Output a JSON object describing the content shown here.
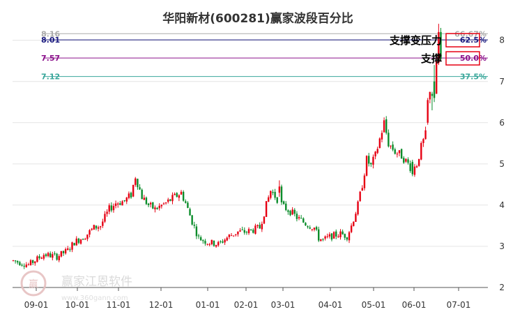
{
  "chart_data": {
    "type": "candlestick",
    "title": "华阳新材(600281)赢家波段百分比",
    "ylim": [
      2,
      8.3
    ],
    "y_ticks": [
      "2",
      "3",
      "4",
      "5",
      "6",
      "7",
      "8"
    ],
    "x_ticks": [
      "09-01",
      "10-01",
      "11-01",
      "12-01",
      "01-01",
      "02-01",
      "03-01",
      "04-01",
      "05-01",
      "06-01",
      "07-01"
    ],
    "grid": "horizontal",
    "colors": {
      "up": "#e60012",
      "down": "#0a8c2a"
    },
    "fib_levels": [
      {
        "price": 8.16,
        "price_label": "8.16",
        "pct_label": "66.67%",
        "color": "#aaaaaa"
      },
      {
        "price": 8.01,
        "price_label": "8.01",
        "pct_label": "62.5%",
        "color": "#1a1a80"
      },
      {
        "price": 7.57,
        "price_label": "7.57",
        "pct_label": "50.0%",
        "color": "#8b108b"
      },
      {
        "price": 7.12,
        "price_label": "7.12",
        "pct_label": "37.5%",
        "color": "#3aa79b"
      }
    ],
    "annotations": [
      {
        "text": "支撑变压力",
        "level": "62.5%"
      },
      {
        "text": "支撑",
        "level": "50.0%"
      }
    ],
    "price_path": [
      [
        0,
        2.65
      ],
      [
        7,
        2.55
      ],
      [
        14,
        2.8
      ],
      [
        20,
        2.75
      ],
      [
        25,
        2.9
      ],
      [
        28,
        3.1
      ],
      [
        33,
        3.25
      ],
      [
        37,
        3.45
      ],
      [
        40,
        3.5
      ],
      [
        44,
        3.9
      ],
      [
        47,
        4.05
      ],
      [
        51,
        4.1
      ],
      [
        54,
        4.25
      ],
      [
        56,
        4.7
      ],
      [
        59,
        4.2
      ],
      [
        62,
        4.0
      ],
      [
        65,
        3.9
      ],
      [
        70,
        4.05
      ],
      [
        74,
        4.2
      ],
      [
        77,
        4.3
      ],
      [
        79,
        4.05
      ],
      [
        82,
        3.6
      ],
      [
        85,
        3.2
      ],
      [
        89,
        3.1
      ],
      [
        94,
        3.05
      ],
      [
        99,
        3.25
      ],
      [
        103,
        3.35
      ],
      [
        107,
        3.35
      ],
      [
        110,
        3.4
      ],
      [
        113,
        3.45
      ],
      [
        116,
        4.0
      ],
      [
        118,
        4.35
      ],
      [
        121,
        4.15
      ],
      [
        124,
        3.95
      ],
      [
        127,
        3.85
      ],
      [
        130,
        3.7
      ],
      [
        134,
        3.55
      ],
      [
        138,
        3.45
      ],
      [
        140,
        3.2
      ],
      [
        142,
        3.15
      ],
      [
        146,
        3.25
      ],
      [
        150,
        3.3
      ],
      [
        153,
        3.25
      ],
      [
        155,
        3.5
      ],
      [
        158,
        4.0
      ],
      [
        160,
        4.5
      ],
      [
        162,
        5.1
      ],
      [
        164,
        4.95
      ],
      [
        166,
        5.2
      ],
      [
        168,
        5.6
      ],
      [
        170,
        6.0
      ],
      [
        172,
        5.5
      ],
      [
        175,
        5.3
      ],
      [
        178,
        5.2
      ],
      [
        181,
        5.0
      ],
      [
        183,
        4.85
      ],
      [
        185,
        5.0
      ],
      [
        187,
        5.4
      ],
      [
        189,
        5.7
      ],
      [
        191,
        6.7
      ],
      [
        193,
        7.6
      ],
      [
        195,
        8.0
      ]
    ],
    "events": [
      {
        "i": 122,
        "o": 4.3,
        "c": 4.45,
        "h": 4.6,
        "l": 4.2
      },
      {
        "i": 183,
        "o": 5.05,
        "c": 4.75,
        "h": 5.1,
        "l": 4.7
      },
      {
        "i": 190,
        "o": 6.0,
        "c": 6.55,
        "h": 6.6,
        "l": 5.95
      },
      {
        "i": 192,
        "o": 6.7,
        "c": 6.65,
        "h": 6.75,
        "l": 6.3
      },
      {
        "i": 193,
        "o": 7.0,
        "c": 6.6,
        "h": 7.4,
        "l": 6.5
      },
      {
        "i": 194,
        "o": 6.7,
        "c": 7.5,
        "h": 7.6,
        "l": 6.7
      },
      {
        "i": 195,
        "o": 7.45,
        "c": 8.2,
        "h": 8.4,
        "l": 7.4
      },
      {
        "i": 196,
        "o": 8.2,
        "c": 7.55,
        "h": 8.3,
        "l": 7.5
      }
    ]
  },
  "watermark": {
    "text": "赢家江恩软件",
    "url": "www.360gann.com",
    "logo_text": "赢"
  }
}
